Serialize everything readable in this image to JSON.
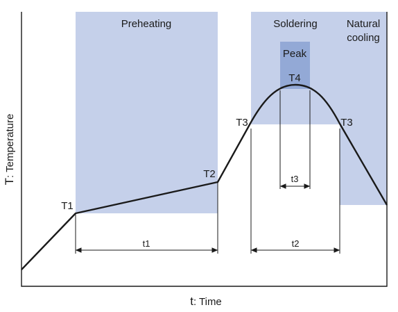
{
  "diagram": {
    "regions": {
      "preheating": "Preheating",
      "soldering": "Soldering",
      "natural_cooling_line1": "Natural",
      "natural_cooling_line2": "cooling",
      "peak": "Peak"
    },
    "points": {
      "t1": "T1",
      "t2": "T2",
      "t3_left": "T3",
      "t3_right": "T3",
      "t4": "T4"
    },
    "durations": {
      "t1": "t1",
      "t2": "t2",
      "t3": "t3"
    },
    "axes": {
      "x_title_letter": "t",
      "x_title_rest": ": Time",
      "y_title_letter": "T",
      "y_title_rest": ": Temperature"
    },
    "colors": {
      "region_fill": "#c5d0ea",
      "peak_fill": "#93a9d6",
      "curve": "#1a1a1a"
    }
  }
}
